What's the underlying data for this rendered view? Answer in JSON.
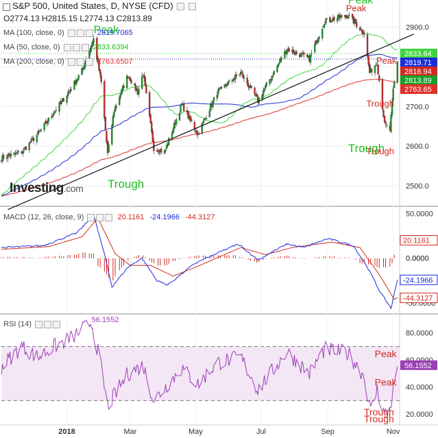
{
  "header": {
    "title": "S&P 500, United States, D, NYSE (CFD)",
    "ohlc": "O2774.13  H2815.15  L2774.13  C2813.89"
  },
  "indicators": {
    "ma100": {
      "label": "MA (100, close, 0)",
      "value": "2819.7065",
      "color": "#1a2bd6"
    },
    "ma50": {
      "label": "MA (50, close, 0)",
      "value": "2833.6394",
      "color": "#1fbf1f"
    },
    "ma200": {
      "label": "MA (200, close, 0)",
      "value": "2763.6507",
      "color": "#e0302a"
    },
    "macd": {
      "label": "MACD (12, 26, close, 9)",
      "v1": "20.1161",
      "v2": "-24.1966",
      "v3": "-44.3127"
    },
    "rsi": {
      "label": "RSI (14)",
      "value": "56.1552"
    }
  },
  "logo": {
    "brand": "Investing",
    "suffix": ".com"
  },
  "colors": {
    "up": "#1a9e2a",
    "down": "#d02a22",
    "ma100": "#1a2bd6",
    "ma50": "#3fd43f",
    "ma200": "#e0302a",
    "rsi": "#9b3fb5",
    "rsi_band": "#f3e6f5",
    "peak": "#1fbf1f",
    "trough_red": "#d02a22"
  },
  "chart_data": [
    {
      "type": "candlestick",
      "panel": "price",
      "x_labels": [
        "2018",
        "Mar",
        "May",
        "Jul",
        "Sep",
        "Nov"
      ],
      "y_ticks": [
        2500,
        2600,
        2700,
        2800,
        2900
      ],
      "ylim": [
        2450,
        2965
      ],
      "price_tags": [
        {
          "value": 2833.64,
          "label": "2833.64",
          "color": "#3fd43f"
        },
        {
          "value": 2819.71,
          "label": "2819.71",
          "color": "#1a2bd6"
        },
        {
          "value": 2816.94,
          "label": "2816.94",
          "color": "#d02a22"
        },
        {
          "value": 2813.89,
          "label": "2813.89",
          "color": "#1a9e2a"
        },
        {
          "value": 2763.65,
          "label": "2763.65",
          "color": "#e0302a"
        }
      ],
      "annotations": [
        {
          "text": "Peak",
          "color": "#1fbf1f",
          "size": 16,
          "x": "2018-01-26",
          "y": 2885
        },
        {
          "text": "Trough",
          "color": "#1fbf1f",
          "size": 17,
          "x": "2018-02-08",
          "y": 2495
        },
        {
          "text": "Peak",
          "color": "#1fbf1f",
          "size": 16,
          "x": "2018-09-20",
          "y": 2960
        },
        {
          "text": "Peak",
          "color": "#d02a22",
          "size": 13,
          "x": "2018-09-18",
          "y": 2940
        },
        {
          "text": "Peak",
          "color": "#d02a22",
          "size": 13,
          "x": "2018-10-17",
          "y": 2808
        },
        {
          "text": "Trough",
          "color": "#d02a22",
          "size": 13,
          "x": "2018-10-11",
          "y": 2700
        },
        {
          "text": "Trough",
          "color": "#1fbf1f",
          "size": 17,
          "x": "2018-09-20",
          "y": 2585
        },
        {
          "text": "Trough",
          "color": "#d02a22",
          "size": 13,
          "x": "2018-10-31",
          "y": 2580
        }
      ],
      "trendline": [
        {
          "x": "2017-11-07",
          "y": 2440
        },
        {
          "x": "2018-11-01",
          "y": 2860
        }
      ],
      "ma_levels_dotted": [
        2833.64,
        2819.71
      ],
      "series_keypoints": [
        {
          "date": "2017-11-01",
          "close": 2570
        },
        {
          "date": "2017-11-20",
          "close": 2585
        },
        {
          "date": "2017-12-05",
          "close": 2630
        },
        {
          "date": "2017-12-20",
          "close": 2685
        },
        {
          "date": "2018-01-05",
          "close": 2745
        },
        {
          "date": "2018-01-15",
          "close": 2790
        },
        {
          "date": "2018-01-26",
          "close": 2870
        },
        {
          "date": "2018-02-02",
          "close": 2760
        },
        {
          "date": "2018-02-08",
          "close": 2580
        },
        {
          "date": "2018-02-14",
          "close": 2690
        },
        {
          "date": "2018-02-27",
          "close": 2780
        },
        {
          "date": "2018-03-08",
          "close": 2735
        },
        {
          "date": "2018-03-13",
          "close": 2785
        },
        {
          "date": "2018-03-23",
          "close": 2595
        },
        {
          "date": "2018-04-02",
          "close": 2585
        },
        {
          "date": "2018-04-18",
          "close": 2705
        },
        {
          "date": "2018-05-03",
          "close": 2630
        },
        {
          "date": "2018-05-21",
          "close": 2735
        },
        {
          "date": "2018-06-12",
          "close": 2785
        },
        {
          "date": "2018-06-28",
          "close": 2715
        },
        {
          "date": "2018-07-25",
          "close": 2845
        },
        {
          "date": "2018-08-15",
          "close": 2820
        },
        {
          "date": "2018-08-29",
          "close": 2915
        },
        {
          "date": "2018-09-20",
          "close": 2930
        },
        {
          "date": "2018-10-05",
          "close": 2885
        },
        {
          "date": "2018-10-10",
          "close": 2785
        },
        {
          "date": "2018-10-17",
          "close": 2810
        },
        {
          "date": "2018-10-24",
          "close": 2655
        },
        {
          "date": "2018-10-29",
          "close": 2640
        },
        {
          "date": "2018-11-01",
          "close": 2740
        },
        {
          "date": "2018-11-05",
          "close": 2813
        }
      ]
    },
    {
      "type": "line+bar",
      "panel": "macd",
      "y_ticks": [
        -50,
        0,
        50
      ],
      "ylim": [
        -60,
        55
      ],
      "tags": [
        {
          "value": 20.1161,
          "label": "20.1161",
          "color": "#d02a22"
        },
        {
          "value": 0,
          "label": "0.0000",
          "color": "#444"
        },
        {
          "value": -24.1966,
          "label": "-24.1966",
          "color": "#1a2bd6"
        },
        {
          "value": -44.3127,
          "label": "-44.3127",
          "color": "#d02a22"
        }
      ],
      "macd_keypoints": [
        {
          "date": "2017-11-01",
          "v": 12
        },
        {
          "date": "2017-12-10",
          "v": 14
        },
        {
          "date": "2018-01-10",
          "v": 28
        },
        {
          "date": "2018-01-26",
          "v": 48
        },
        {
          "date": "2018-02-06",
          "v": 0
        },
        {
          "date": "2018-02-12",
          "v": -32
        },
        {
          "date": "2018-02-27",
          "v": -10
        },
        {
          "date": "2018-03-12",
          "v": 0
        },
        {
          "date": "2018-03-26",
          "v": -25
        },
        {
          "date": "2018-04-05",
          "v": -30
        },
        {
          "date": "2018-04-30",
          "v": -6
        },
        {
          "date": "2018-05-20",
          "v": 5
        },
        {
          "date": "2018-06-10",
          "v": 16
        },
        {
          "date": "2018-06-28",
          "v": -2
        },
        {
          "date": "2018-07-25",
          "v": 16
        },
        {
          "date": "2018-08-10",
          "v": 12
        },
        {
          "date": "2018-09-01",
          "v": 22
        },
        {
          "date": "2018-09-25",
          "v": 14
        },
        {
          "date": "2018-10-08",
          "v": -10
        },
        {
          "date": "2018-10-20",
          "v": -38
        },
        {
          "date": "2018-10-30",
          "v": -56
        },
        {
          "date": "2018-11-05",
          "v": -24
        }
      ],
      "signal_keypoints": [
        {
          "date": "2017-11-01",
          "v": 10
        },
        {
          "date": "2017-12-15",
          "v": 13
        },
        {
          "date": "2018-01-15",
          "v": 24
        },
        {
          "date": "2018-01-30",
          "v": 45
        },
        {
          "date": "2018-02-15",
          "v": 5
        },
        {
          "date": "2018-03-01",
          "v": -8
        },
        {
          "date": "2018-03-20",
          "v": -8
        },
        {
          "date": "2018-04-10",
          "v": -20
        },
        {
          "date": "2018-05-05",
          "v": -8
        },
        {
          "date": "2018-06-12",
          "v": 12
        },
        {
          "date": "2018-07-05",
          "v": 4
        },
        {
          "date": "2018-07-30",
          "v": 12
        },
        {
          "date": "2018-09-05",
          "v": 18
        },
        {
          "date": "2018-10-01",
          "v": 12
        },
        {
          "date": "2018-10-20",
          "v": -20
        },
        {
          "date": "2018-11-02",
          "v": -46
        },
        {
          "date": "2018-11-05",
          "v": -44
        }
      ]
    },
    {
      "type": "line",
      "panel": "rsi",
      "y_ticks": [
        20,
        40,
        60,
        80
      ],
      "ylim": [
        13,
        92
      ],
      "bands": [
        30,
        70
      ],
      "tags": [
        {
          "value": 56.1552,
          "label": "56.1552",
          "color": "#9b3fb5"
        }
      ],
      "annotations": [
        {
          "text": "56.1552",
          "color": "#9b3fb5",
          "size": 11,
          "x": "2018-01-24",
          "y": 88
        },
        {
          "text": "Peak",
          "color": "#d02a22",
          "size": 14,
          "x": "2018-11-05",
          "y": 62
        },
        {
          "text": "Peak",
          "color": "#d02a22",
          "size": 14,
          "x": "2018-10-23",
          "y": 41
        },
        {
          "text": "Trough",
          "color": "#d02a22",
          "size": 14,
          "x": "2018-10-27",
          "y": 19
        },
        {
          "text": "Trough",
          "color": "#d02a22",
          "size": 14,
          "x": "2018-10-12",
          "y": 14
        }
      ],
      "rsi_keypoints": [
        {
          "date": "2017-11-01",
          "v": 55
        },
        {
          "date": "2017-11-20",
          "v": 70
        },
        {
          "date": "2017-12-05",
          "v": 62
        },
        {
          "date": "2017-12-20",
          "v": 70
        },
        {
          "date": "2018-01-05",
          "v": 76
        },
        {
          "date": "2018-01-24",
          "v": 88
        },
        {
          "date": "2018-02-02",
          "v": 55
        },
        {
          "date": "2018-02-08",
          "v": 26
        },
        {
          "date": "2018-02-27",
          "v": 50
        },
        {
          "date": "2018-03-13",
          "v": 56
        },
        {
          "date": "2018-03-23",
          "v": 30
        },
        {
          "date": "2018-04-18",
          "v": 54
        },
        {
          "date": "2018-05-03",
          "v": 42
        },
        {
          "date": "2018-05-21",
          "v": 58
        },
        {
          "date": "2018-06-12",
          "v": 62
        },
        {
          "date": "2018-06-28",
          "v": 38
        },
        {
          "date": "2018-07-25",
          "v": 66
        },
        {
          "date": "2018-08-15",
          "v": 50
        },
        {
          "date": "2018-08-29",
          "v": 68
        },
        {
          "date": "2018-09-20",
          "v": 65
        },
        {
          "date": "2018-10-05",
          "v": 48
        },
        {
          "date": "2018-10-11",
          "v": 22
        },
        {
          "date": "2018-10-17",
          "v": 38
        },
        {
          "date": "2018-10-24",
          "v": 20
        },
        {
          "date": "2018-10-29",
          "v": 24
        },
        {
          "date": "2018-11-05",
          "v": 56
        }
      ]
    }
  ]
}
